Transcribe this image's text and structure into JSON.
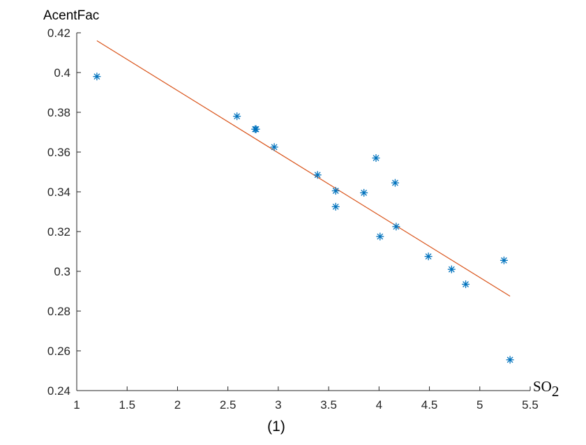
{
  "chart_data": {
    "type": "scatter",
    "title": "",
    "ylabel": "AcentFac",
    "xlabel": "SO",
    "xlabel_subscript": "2",
    "caption": "(1)",
    "xlim": [
      1,
      5.5
    ],
    "ylim": [
      0.24,
      0.42
    ],
    "xticks": [
      1,
      1.5,
      2,
      2.5,
      3,
      3.5,
      4,
      4.5,
      5,
      5.5
    ],
    "xtick_labels": [
      "1",
      "1.5",
      "2",
      "2.5",
      "3",
      "3.5",
      "4",
      "4.5",
      "5",
      "5.5"
    ],
    "yticks": [
      0.24,
      0.26,
      0.28,
      0.3,
      0.32,
      0.34,
      0.36,
      0.38,
      0.4,
      0.42
    ],
    "ytick_labels": [
      "0.24",
      "0.26",
      "0.28",
      "0.3",
      "0.32",
      "0.34",
      "0.36",
      "0.38",
      "0.4",
      "0.42"
    ],
    "grid": false,
    "marker_color": "#0072BD",
    "fit_line_color": "#D95319",
    "points": [
      {
        "x": 1.2,
        "y": 0.398
      },
      {
        "x": 2.59,
        "y": 0.378
      },
      {
        "x": 2.77,
        "y": 0.3715
      },
      {
        "x": 2.78,
        "y": 0.3715
      },
      {
        "x": 2.96,
        "y": 0.3625
      },
      {
        "x": 3.39,
        "y": 0.3485
      },
      {
        "x": 3.57,
        "y": 0.3405
      },
      {
        "x": 3.57,
        "y": 0.3325
      },
      {
        "x": 3.85,
        "y": 0.3395
      },
      {
        "x": 3.97,
        "y": 0.357
      },
      {
        "x": 4.01,
        "y": 0.3175
      },
      {
        "x": 4.16,
        "y": 0.3445
      },
      {
        "x": 4.17,
        "y": 0.3225
      },
      {
        "x": 4.49,
        "y": 0.3075
      },
      {
        "x": 4.72,
        "y": 0.301
      },
      {
        "x": 4.86,
        "y": 0.2935
      },
      {
        "x": 5.24,
        "y": 0.3055
      },
      {
        "x": 5.3,
        "y": 0.2555
      }
    ],
    "fit_line": {
      "x": [
        1.2,
        5.3
      ],
      "y": [
        0.416,
        0.2875
      ]
    }
  }
}
